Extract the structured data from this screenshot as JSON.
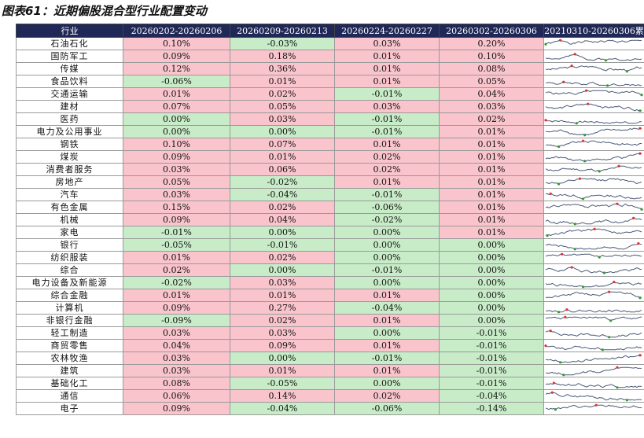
{
  "title": "图表61：近期偏股混合型行业配置变动",
  "columns": [
    "行业",
    "20260202-20260206",
    "20260209-20260213",
    "20260224-20260227",
    "20260302-20260306",
    "20210310-20260306累"
  ],
  "rows": [
    {
      "industry": "石油石化",
      "values": [
        "0.10%",
        "-0.03%",
        "0.03%",
        "0.20%"
      ]
    },
    {
      "industry": "国防军工",
      "values": [
        "0.09%",
        "0.18%",
        "0.01%",
        "0.10%"
      ]
    },
    {
      "industry": "传媒",
      "values": [
        "0.12%",
        "0.36%",
        "0.01%",
        "0.08%"
      ]
    },
    {
      "industry": "食品饮料",
      "values": [
        "-0.06%",
        "0.01%",
        "0.01%",
        "0.05%"
      ]
    },
    {
      "industry": "交通运输",
      "values": [
        "0.01%",
        "0.02%",
        "-0.01%",
        "0.04%"
      ]
    },
    {
      "industry": "建材",
      "values": [
        "0.07%",
        "0.05%",
        "0.03%",
        "0.03%"
      ]
    },
    {
      "industry": "医药",
      "values": [
        "0.00%",
        "0.03%",
        "-0.01%",
        "0.02%"
      ]
    },
    {
      "industry": "电力及公用事业",
      "values": [
        "0.00%",
        "0.00%",
        "-0.01%",
        "0.01%"
      ]
    },
    {
      "industry": "钢铁",
      "values": [
        "0.10%",
        "0.07%",
        "0.01%",
        "0.01%"
      ]
    },
    {
      "industry": "煤炭",
      "values": [
        "0.09%",
        "0.01%",
        "0.02%",
        "0.01%"
      ]
    },
    {
      "industry": "消费者服务",
      "values": [
        "0.03%",
        "0.06%",
        "0.02%",
        "0.01%"
      ]
    },
    {
      "industry": "房地产",
      "values": [
        "0.05%",
        "-0.02%",
        "0.01%",
        "0.01%"
      ]
    },
    {
      "industry": "汽车",
      "values": [
        "0.03%",
        "-0.04%",
        "-0.01%",
        "0.01%"
      ]
    },
    {
      "industry": "有色金属",
      "values": [
        "0.15%",
        "0.02%",
        "-0.06%",
        "0.01%"
      ]
    },
    {
      "industry": "机械",
      "values": [
        "0.09%",
        "0.04%",
        "-0.02%",
        "0.01%"
      ]
    },
    {
      "industry": "家电",
      "values": [
        "-0.01%",
        "0.00%",
        "0.00%",
        "0.01%"
      ]
    },
    {
      "industry": "银行",
      "values": [
        "-0.05%",
        "-0.01%",
        "0.00%",
        "0.00%"
      ]
    },
    {
      "industry": "纺织服装",
      "values": [
        "0.01%",
        "0.02%",
        "0.00%",
        "0.00%"
      ]
    },
    {
      "industry": "综合",
      "values": [
        "0.02%",
        "0.00%",
        "-0.01%",
        "0.00%"
      ]
    },
    {
      "industry": "电力设备及新能源",
      "values": [
        "-0.02%",
        "0.03%",
        "0.00%",
        "0.00%"
      ]
    },
    {
      "industry": "综合金融",
      "values": [
        "0.01%",
        "0.01%",
        "0.01%",
        "0.00%"
      ]
    },
    {
      "industry": "计算机",
      "values": [
        "0.09%",
        "0.27%",
        "-0.04%",
        "0.00%"
      ]
    },
    {
      "industry": "非银行金融",
      "values": [
        "-0.09%",
        "0.02%",
        "0.01%",
        "0.00%"
      ]
    },
    {
      "industry": "轻工制造",
      "values": [
        "0.03%",
        "0.03%",
        "0.00%",
        "-0.01%"
      ]
    },
    {
      "industry": "商贸零售",
      "values": [
        "0.04%",
        "0.09%",
        "0.01%",
        "-0.01%"
      ]
    },
    {
      "industry": "农林牧渔",
      "values": [
        "0.03%",
        "0.00%",
        "-0.01%",
        "-0.01%"
      ]
    },
    {
      "industry": "建筑",
      "values": [
        "0.03%",
        "0.01%",
        "0.01%",
        "-0.01%"
      ]
    },
    {
      "industry": "基础化工",
      "values": [
        "0.08%",
        "-0.05%",
        "0.00%",
        "-0.01%"
      ]
    },
    {
      "industry": "通信",
      "values": [
        "0.06%",
        "0.14%",
        "0.02%",
        "-0.04%"
      ]
    },
    {
      "industry": "电子",
      "values": [
        "0.09%",
        "-0.04%",
        "-0.06%",
        "-0.14%"
      ]
    }
  ],
  "colors": {
    "header_bg": "#1f2856",
    "positive_cell": "#f9c4cc",
    "negative_cell": "#c8ecc8",
    "sparkline": "#4a5a7a",
    "sparkline_high": "#e03030",
    "sparkline_low": "#2e9a2e"
  }
}
